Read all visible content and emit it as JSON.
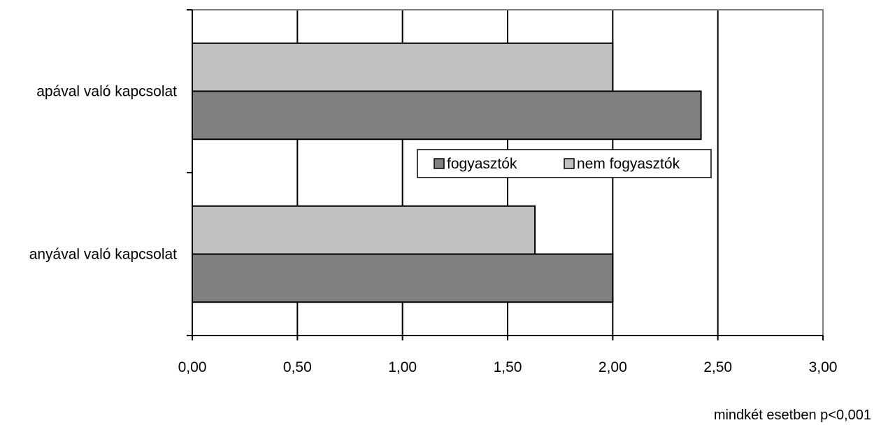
{
  "chart_data": {
    "type": "bar",
    "orientation": "horizontal",
    "categories": [
      "apával való kapcsolat",
      "anyával való kapcsolat"
    ],
    "series": [
      {
        "name": "fogyasztók",
        "values": [
          2.42,
          2.0
        ],
        "color": "#808080"
      },
      {
        "name": "nem fogyasztók",
        "values": [
          2.0,
          1.63
        ],
        "color": "#c0c0c0"
      }
    ],
    "xlim": [
      0,
      3
    ],
    "xticks": [
      0,
      0.5,
      1.0,
      1.5,
      2.0,
      2.5,
      3.0
    ],
    "xtick_labels": [
      "0,00",
      "0,50",
      "1,00",
      "1,50",
      "2,00",
      "2,50",
      "3,00"
    ],
    "grid": "vertical",
    "legend_position": "center-right",
    "title": "",
    "xlabel": "",
    "ylabel": "",
    "annotation": "mindkét esetben p<0,001"
  }
}
